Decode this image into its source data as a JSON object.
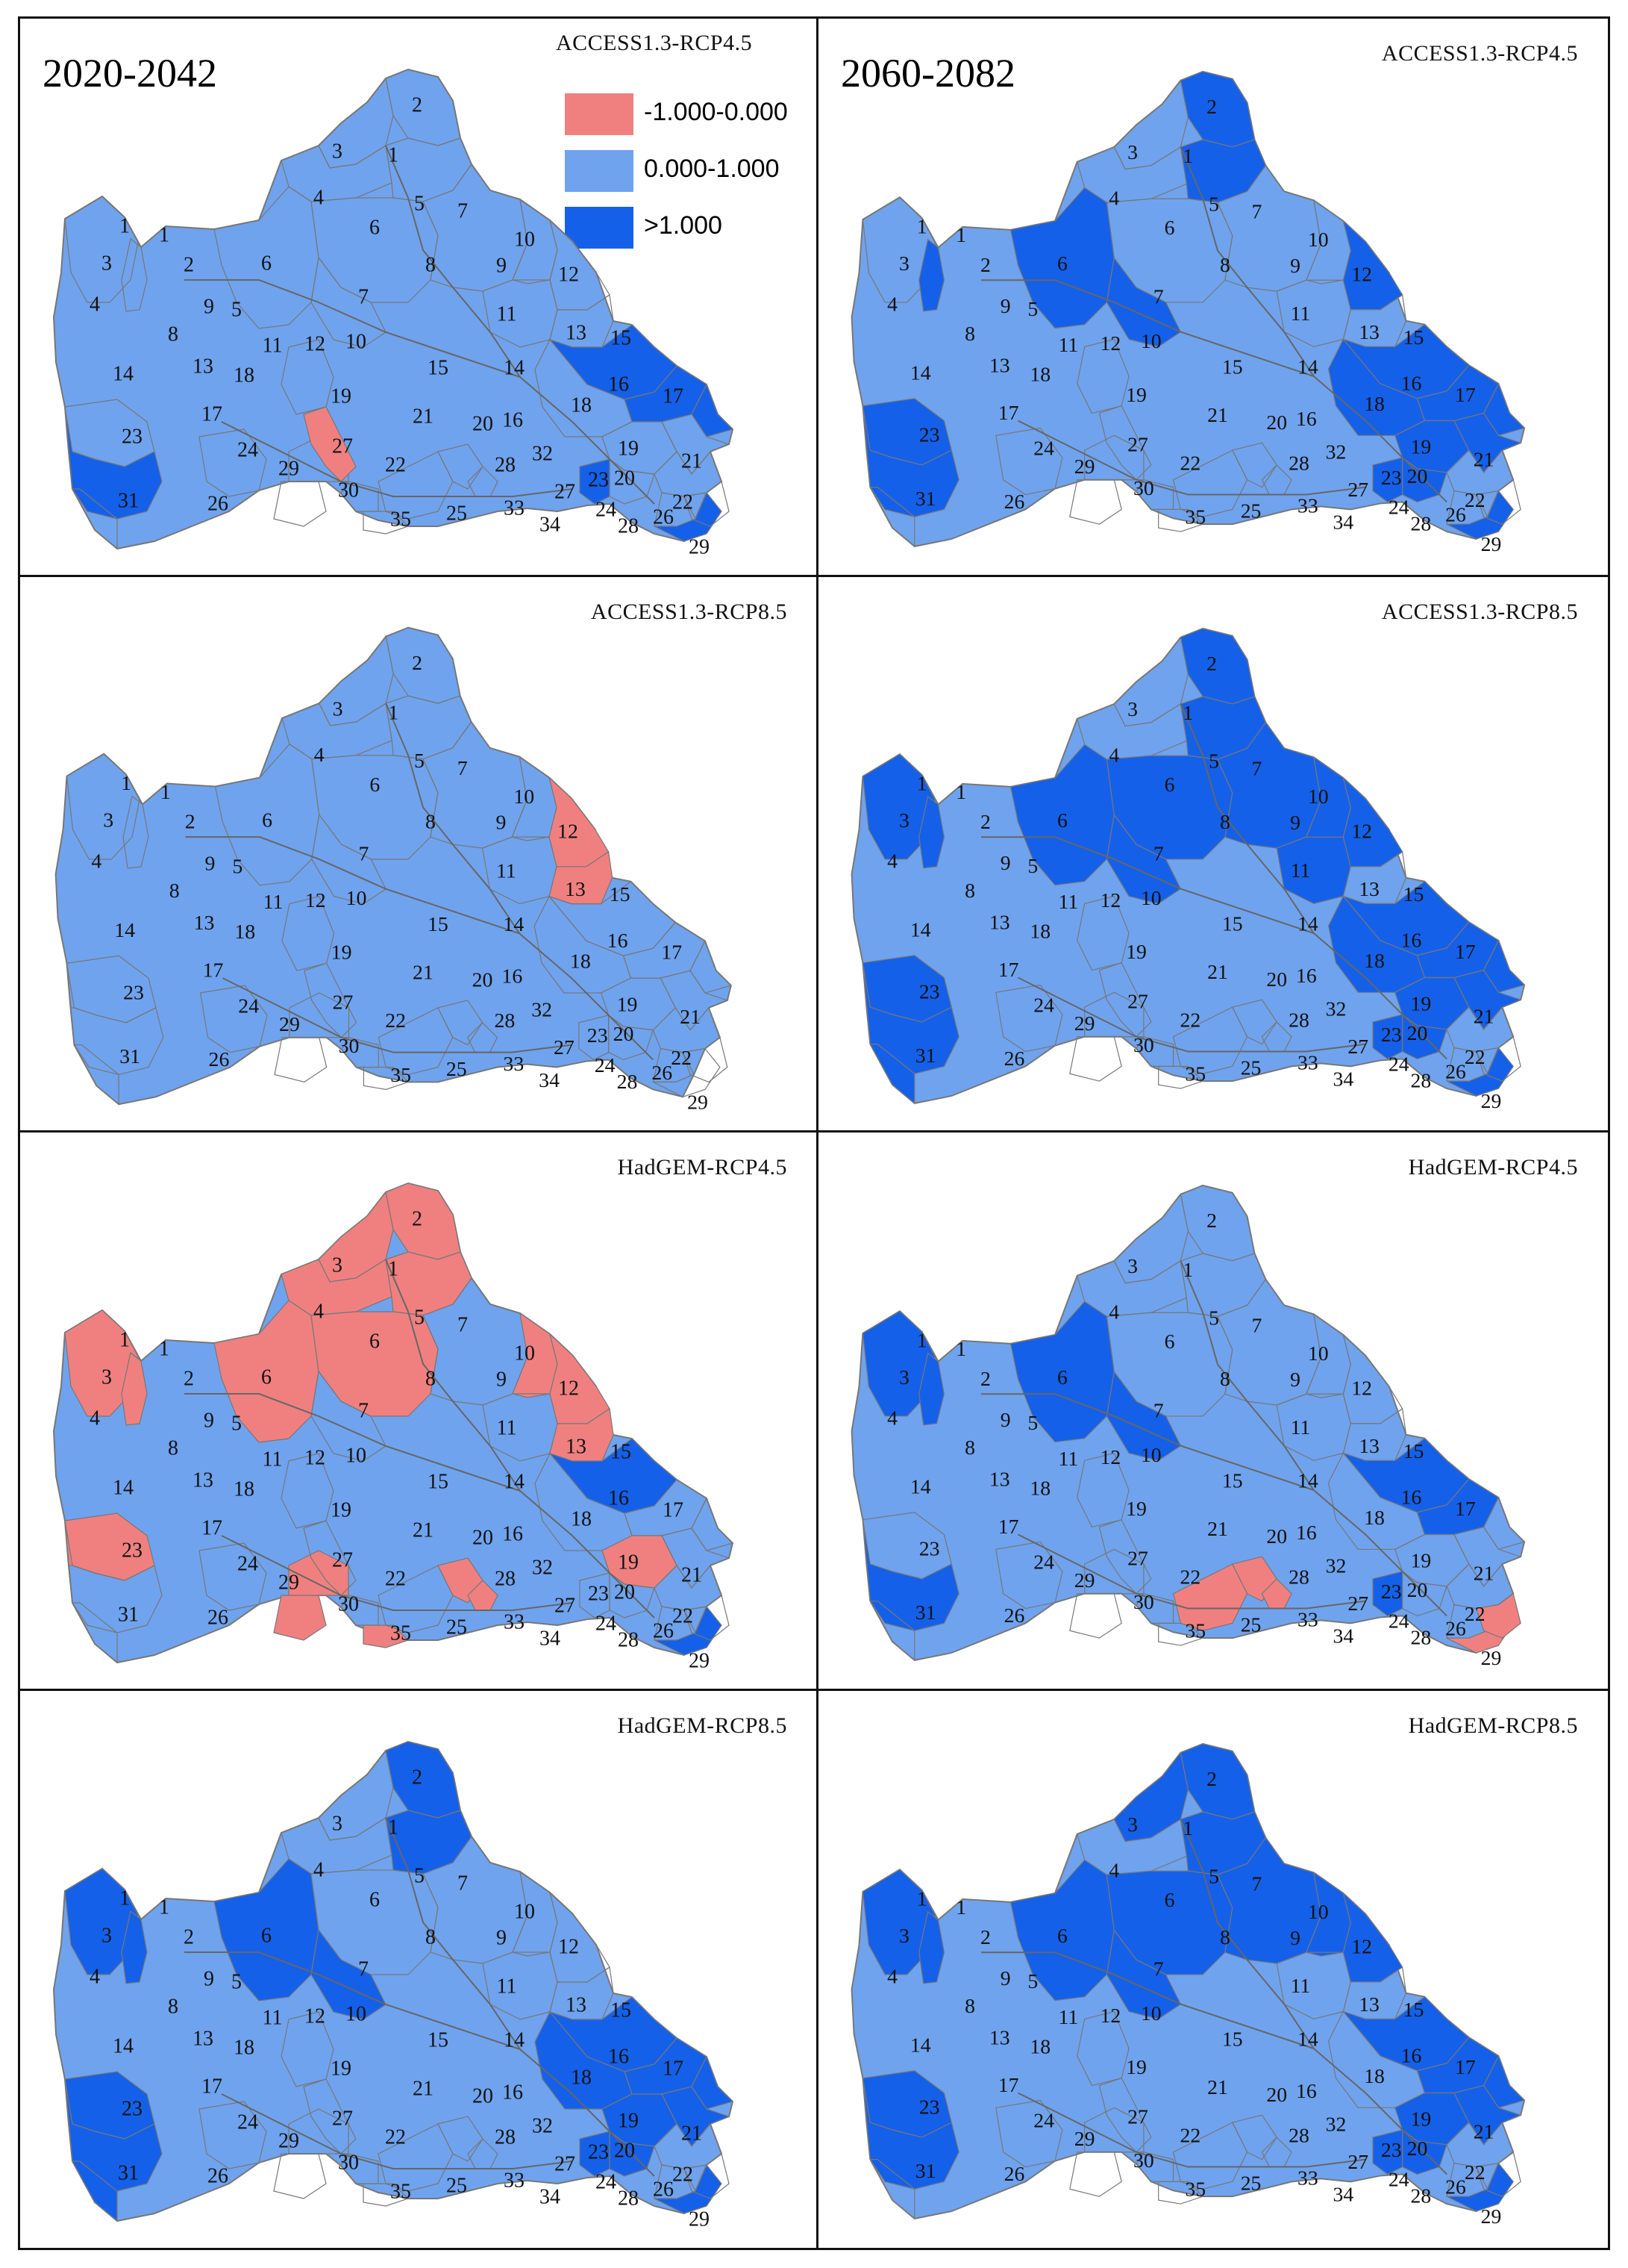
{
  "periods": [
    "2020-2042",
    "2060-2082"
  ],
  "legend": {
    "title": "ACCESS1.3-RCP4.5",
    "items": [
      {
        "class": "neg",
        "label": "-1.000-0.000",
        "color": "#f08080"
      },
      {
        "class": "mid",
        "label": "0.000-1.000",
        "color": "#6fa3ee"
      },
      {
        "class": "high",
        "label": ">1.000",
        "color": "#1560e8"
      }
    ]
  },
  "colors": {
    "neg": "#f08080",
    "mid": "#6fa3ee",
    "high": "#1560e8",
    "border": "#777777",
    "river": "#666666"
  },
  "subbasin_labels": [
    "1",
    "2",
    "3",
    "4",
    "5",
    "6",
    "7",
    "8",
    "9",
    "10",
    "11",
    "12",
    "13",
    "14",
    "15",
    "16",
    "17",
    "18",
    "19",
    "20",
    "21",
    "22",
    "23",
    "24",
    "25",
    "26",
    "27",
    "28",
    "29",
    "30",
    "31",
    "32",
    "33",
    "34",
    "35"
  ],
  "panels": [
    {
      "id": "p1",
      "title": "ACCESS1.3-RCP4.5",
      "period": "2020-2042",
      "high": [
        15,
        16,
        17,
        23,
        "23b",
        "29b"
      ],
      "neg": [
        "27b"
      ]
    },
    {
      "id": "p2",
      "title": "ACCESS1.3-RCP4.5",
      "period": "2060-2082",
      "high": [
        2,
        5,
        6,
        12,
        14,
        23,
        15,
        16,
        17,
        18,
        19,
        20,
        21,
        "23b",
        "29b",
        10,
        "2x"
      ],
      "neg": []
    },
    {
      "id": "p3",
      "title": "ACCESS1.3-RCP8.5",
      "period": "",
      "high": [],
      "neg": [
        12,
        13
      ]
    },
    {
      "id": "p4",
      "title": "ACCESS1.3-RCP8.5",
      "period": "",
      "high": [
        2,
        5,
        6,
        7,
        8,
        9,
        12,
        1,
        "2x",
        14,
        23,
        31,
        10,
        11,
        15,
        16,
        17,
        18,
        19,
        20,
        21,
        "23b",
        "29b"
      ],
      "neg": []
    },
    {
      "id": "p5",
      "title": "HadGEM-RCP4.5",
      "period": "",
      "high": [
        15,
        "29b"
      ],
      "neg": [
        1,
        2,
        3,
        4,
        5,
        6,
        7,
        9,
        12,
        13,
        14,
        19,
        27,
        30,
        35,
        "28b",
        "33b",
        "2x"
      ]
    },
    {
      "id": "p6",
      "title": "HadGEM-RCP4.5",
      "period": "",
      "high": [
        1,
        "2x",
        6,
        10,
        15,
        16,
        23,
        "23b"
      ],
      "neg": [
        "25b",
        "28b",
        "33b",
        "22b",
        "29b"
      ]
    },
    {
      "id": "p7",
      "title": "HadGEM-RCP8.5",
      "period": "",
      "high": [
        2,
        5,
        6,
        1,
        "2x",
        10,
        14,
        23,
        31,
        15,
        16,
        17,
        18,
        19,
        20,
        21,
        "23b",
        "29b"
      ],
      "neg": []
    },
    {
      "id": "p8",
      "title": "HadGEM-RCP8.5",
      "period": "",
      "high": [
        2,
        5,
        6,
        7,
        8,
        9,
        12,
        1,
        "2x",
        3,
        10,
        14,
        23,
        15,
        16,
        17,
        19,
        20,
        21,
        "23b",
        "29b"
      ],
      "neg": []
    }
  ]
}
